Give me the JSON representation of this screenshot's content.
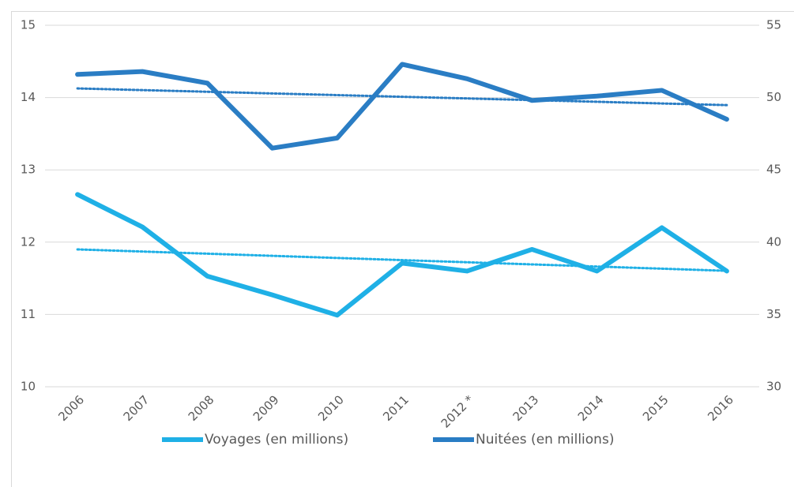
{
  "chart_data": {
    "type": "line",
    "categories": [
      "2006",
      "2007",
      "2008",
      "2009",
      "2010",
      "2011",
      "2012 *",
      "2013",
      "2014",
      "2015",
      "2016"
    ],
    "series": [
      {
        "name": "Voyages (en millions)",
        "color": "#1fb0e6",
        "axis": "y",
        "trendline": true,
        "values": [
          12.66,
          12.21,
          11.53,
          11.27,
          10.99,
          11.71,
          11.6,
          11.9,
          11.6,
          12.2,
          11.6
        ]
      },
      {
        "name": "Nuitées (en millions)",
        "color": "#2a7dc4",
        "axis": "y2",
        "trendline": true,
        "values": [
          51.6,
          51.8,
          51.0,
          46.5,
          47.2,
          52.3,
          51.3,
          49.8,
          50.1,
          50.5,
          48.5
        ]
      }
    ],
    "ylim": [
      10,
      15
    ],
    "yticks": [
      10,
      11,
      12,
      13,
      14,
      15
    ],
    "y2lim": [
      30,
      55
    ],
    "y2ticks": [
      30,
      35,
      40,
      45,
      50,
      55
    ],
    "grid": true,
    "legend": "bottom"
  }
}
